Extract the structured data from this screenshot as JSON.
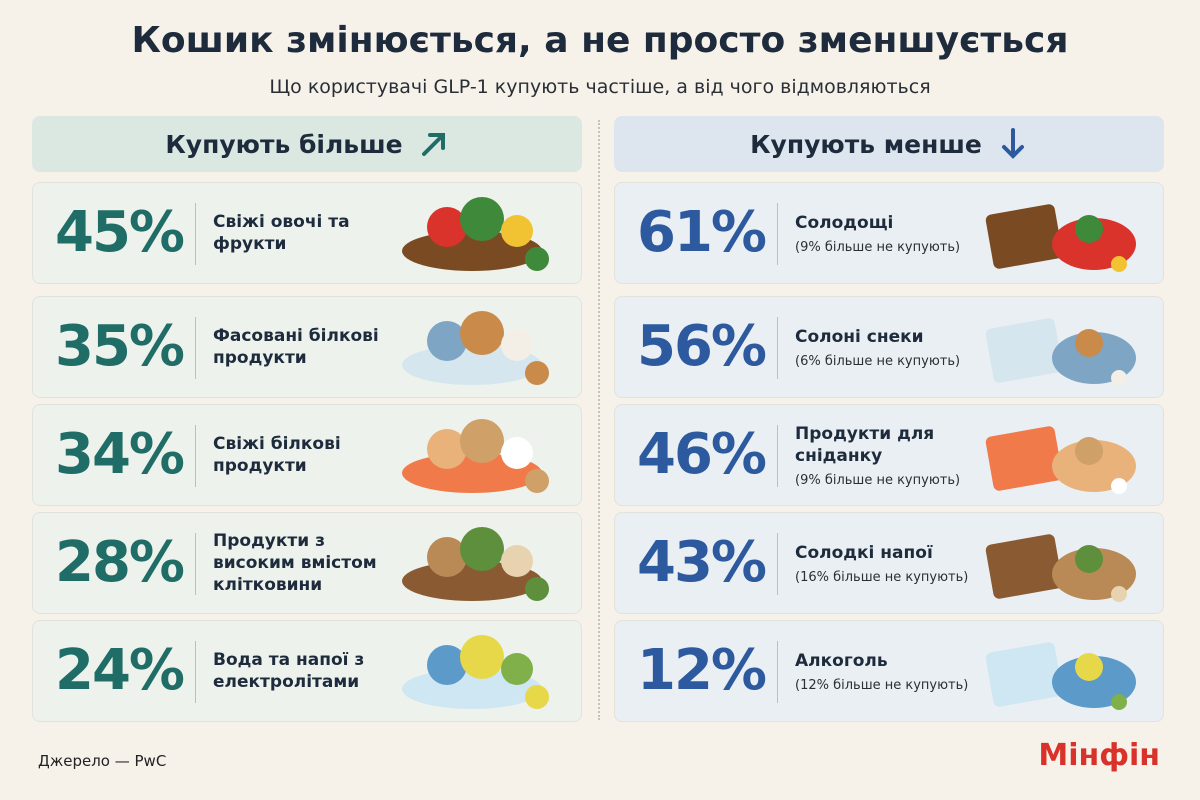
{
  "header": {
    "title": "Кошик змінюється, а не просто зменшується",
    "subtitle": "Що користувачі GLP-1 купують частіше, а від чого відмовляються"
  },
  "columns": [
    {
      "heading": "Купують більше",
      "items": [
        {
          "value": "45%",
          "label": "Свіжі овочі та фрукти"
        },
        {
          "value": "35%",
          "label": "Фасовані білкові продукти"
        },
        {
          "value": "34%",
          "label": "Свіжі білкові продукти"
        },
        {
          "value": "28%",
          "label": "Продукти з високим вмістом клітковини"
        },
        {
          "value": "24%",
          "label": "Вода та напої з електролітами"
        }
      ]
    },
    {
      "heading": "Купують менше",
      "items": [
        {
          "value": "61%",
          "label": "Солодощі",
          "note": "(9% більше не купують)"
        },
        {
          "value": "56%",
          "label": "Солоні снеки",
          "note": "(6% більше не купують)"
        },
        {
          "value": "46%",
          "label": "Продукти для сніданку",
          "note": "(9% більше не купують)"
        },
        {
          "value": "43%",
          "label": "Солодкі напої",
          "note": "(16% більше не купують)"
        },
        {
          "value": "12%",
          "label": "Алкоголь",
          "note": "(12% більше не купують)"
        }
      ]
    }
  ],
  "footer": {
    "source": "Джерело — PwC",
    "brand": "Мінфін"
  }
}
